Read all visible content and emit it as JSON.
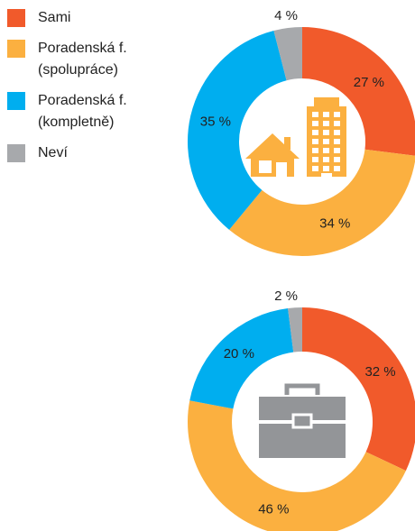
{
  "legend": [
    {
      "name": "Sami",
      "color": "#f15a2b"
    },
    {
      "name": "Poradenská f. (spolupráce)",
      "color": "#fbb040"
    },
    {
      "name": "Poradenská f. (kompletně)",
      "color": "#00aeef"
    },
    {
      "name": "Neví",
      "color": "#a7a9ac"
    }
  ],
  "chart_data": [
    {
      "type": "pie",
      "values": [
        27,
        34,
        35,
        4
      ],
      "value_labels": [
        "27 %",
        "34 %",
        "35 %",
        "4 %"
      ]
    },
    {
      "type": "pie",
      "values": [
        32,
        46,
        20,
        2
      ],
      "value_labels": [
        "32 %",
        "46 %",
        "20 %",
        "2 %"
      ]
    }
  ]
}
